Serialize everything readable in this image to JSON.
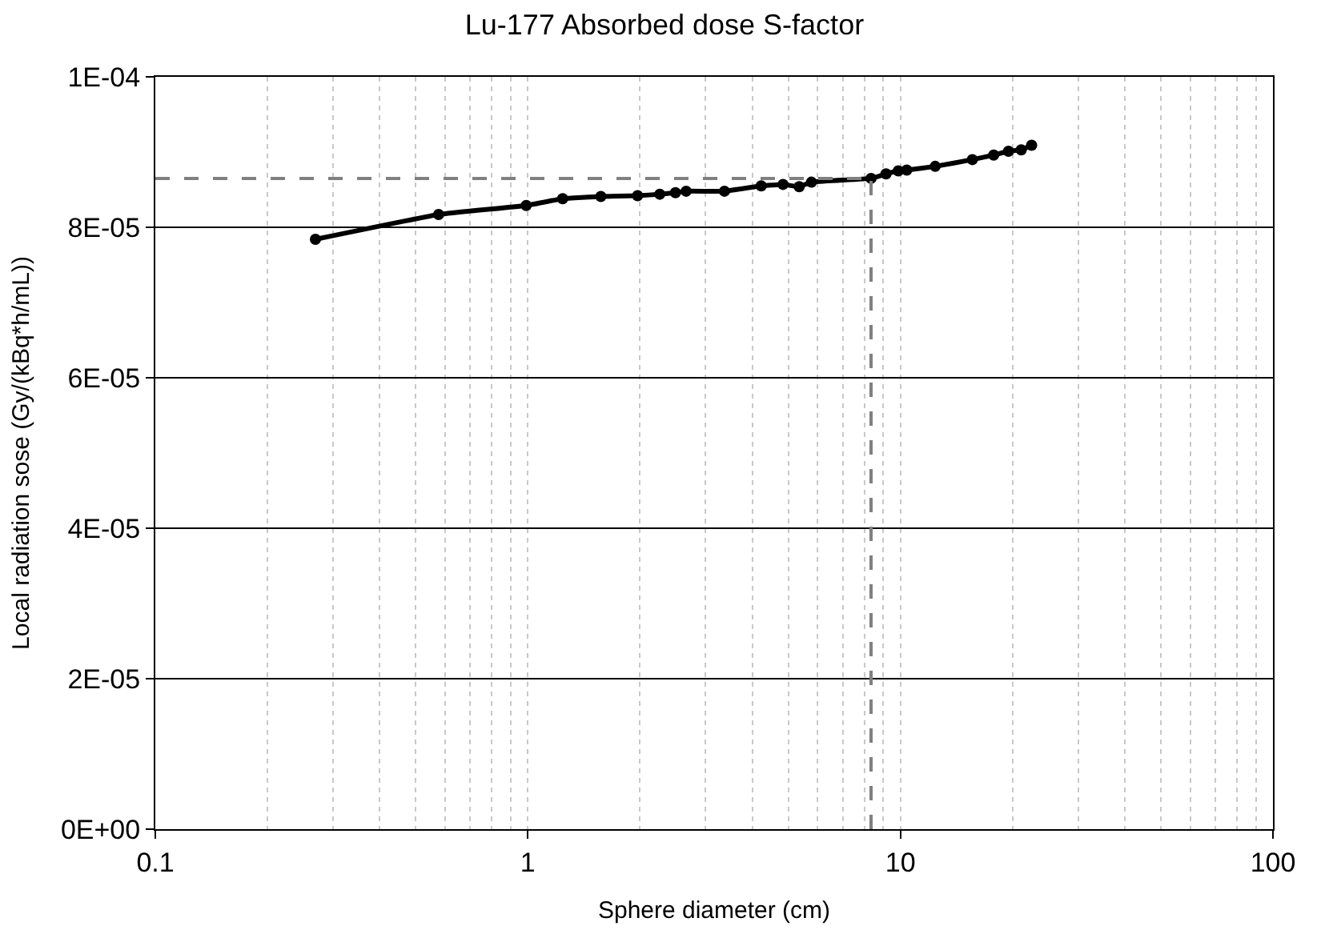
{
  "chart_data": {
    "type": "line",
    "title": "Lu-177 Absorbed dose S-factor",
    "xlabel": "Sphere diameter (cm)",
    "ylabel": "Local radiation sose (Gy/(kBq*h/mL))",
    "x": [
      0.269,
      0.576,
      0.99,
      1.24,
      1.57,
      1.97,
      2.26,
      2.49,
      2.66,
      3.37,
      4.23,
      4.84,
      5.35,
      5.77,
      8.34,
      9.15,
      9.87,
      10.4,
      12.4,
      15.6,
      17.8,
      19.5,
      21.1,
      22.5
    ],
    "series": [
      {
        "color": "#000000",
        "values": [
          7.84e-05,
          8.17e-05,
          8.29e-05,
          8.38e-05,
          8.41e-05,
          8.42e-05,
          8.44e-05,
          8.46e-05,
          8.48e-05,
          8.48e-05,
          8.55e-05,
          8.57e-05,
          8.54e-05,
          8.6e-05,
          8.65e-05,
          8.71e-05,
          8.75e-05,
          8.76e-05,
          8.81e-05,
          8.9e-05,
          8.96e-05,
          9.01e-05,
          9.03e-05,
          9.09e-05
        ]
      }
    ],
    "log": "x",
    "xlim": [
      0.1,
      100
    ],
    "xticks": [
      0.1,
      1,
      10,
      100
    ],
    "ylim": [
      0,
      0.0001
    ],
    "yticks": [
      {
        "value": 0,
        "label": "0E+00"
      },
      {
        "value": 2e-05,
        "label": "2E-05"
      },
      {
        "value": 4e-05,
        "label": "4E-05"
      },
      {
        "value": 6e-05,
        "label": "6E-05"
      },
      {
        "value": 8e-05,
        "label": "8E-05"
      },
      {
        "value": 0.0001,
        "label": "1E-04"
      }
    ],
    "grid": true,
    "marker": "circle",
    "line_style": "solid",
    "ref_lines": [
      {
        "axis": "x",
        "value": 8.34,
        "color": "#808080",
        "line_style": "dashed"
      },
      {
        "axis": "y",
        "value": 8.65e-05,
        "color": "#808080",
        "line_style": "dashed"
      }
    ]
  }
}
